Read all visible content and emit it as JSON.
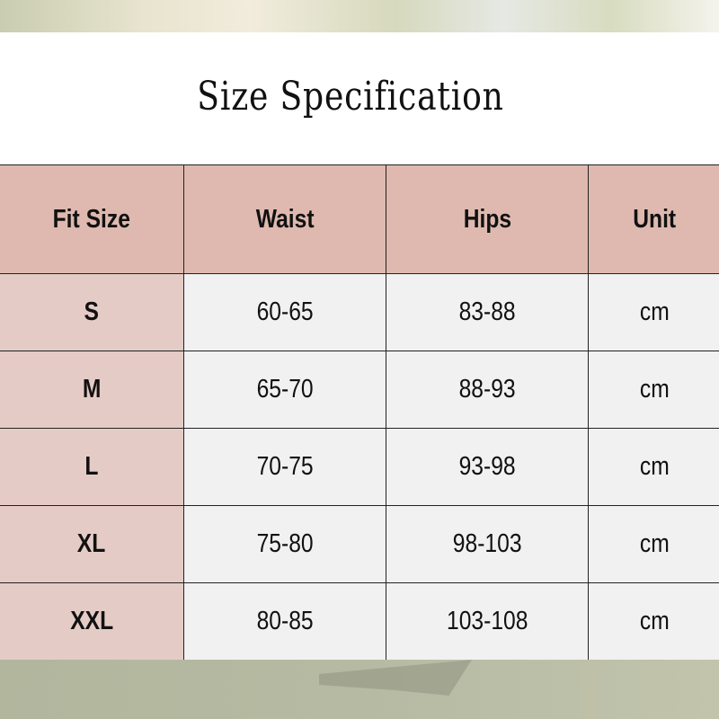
{
  "title": "Size Specification",
  "table": {
    "headers": [
      "Fit Size",
      "Waist",
      "Hips",
      "Unit"
    ],
    "rows": [
      [
        "S",
        "60-65",
        "83-88",
        "cm"
      ],
      [
        "M",
        "65-70",
        "88-93",
        "cm"
      ],
      [
        "L",
        "70-75",
        "93-98",
        "cm"
      ],
      [
        "XL",
        "75-80",
        "98-103",
        "cm"
      ],
      [
        "XXL",
        "80-85",
        "103-108",
        "cm"
      ]
    ]
  },
  "colors": {
    "header_bg": "#dfb9af",
    "size_col_bg": "#e5cbc6",
    "cell_bg": "#f1f1f1",
    "border": "#222222"
  }
}
